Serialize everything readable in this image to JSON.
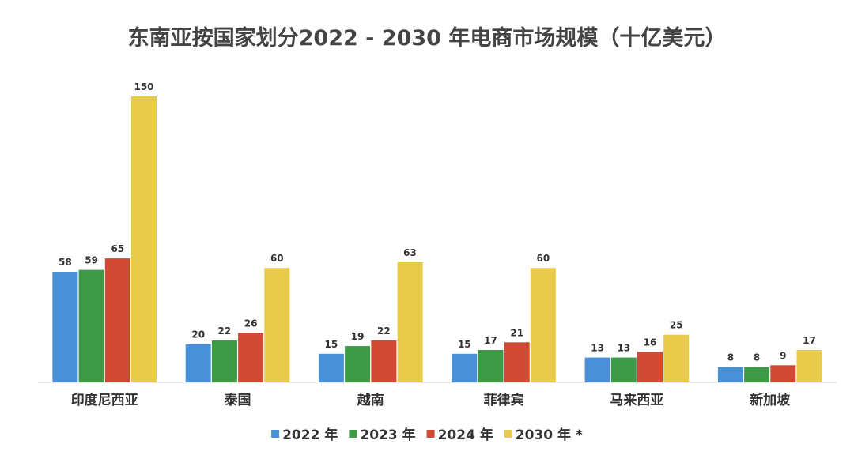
{
  "chart_data": {
    "type": "bar",
    "title": "东南亚按国家划分2022 - 2030 年电商市场规模（十亿美元）",
    "xlabel": "",
    "ylabel": "",
    "ylim": [
      0,
      150
    ],
    "grid": false,
    "legend_position": "bottom",
    "categories": [
      "印度尼西亚",
      "泰国",
      "越南",
      "菲律宾",
      "马来西亚",
      "新加坡"
    ],
    "series": [
      {
        "name": "2022 年",
        "color": "#4a90d6",
        "values": [
          58,
          20,
          15,
          15,
          13,
          8
        ]
      },
      {
        "name": "2023 年",
        "color": "#3f9a47",
        "values": [
          59,
          22,
          19,
          17,
          13,
          8
        ]
      },
      {
        "name": "2024 年",
        "color": "#d24a35",
        "values": [
          65,
          26,
          22,
          21,
          16,
          9
        ]
      },
      {
        "name": "2030 年 *",
        "color": "#e8cb4a",
        "values": [
          150,
          60,
          63,
          60,
          25,
          17
        ]
      }
    ]
  }
}
